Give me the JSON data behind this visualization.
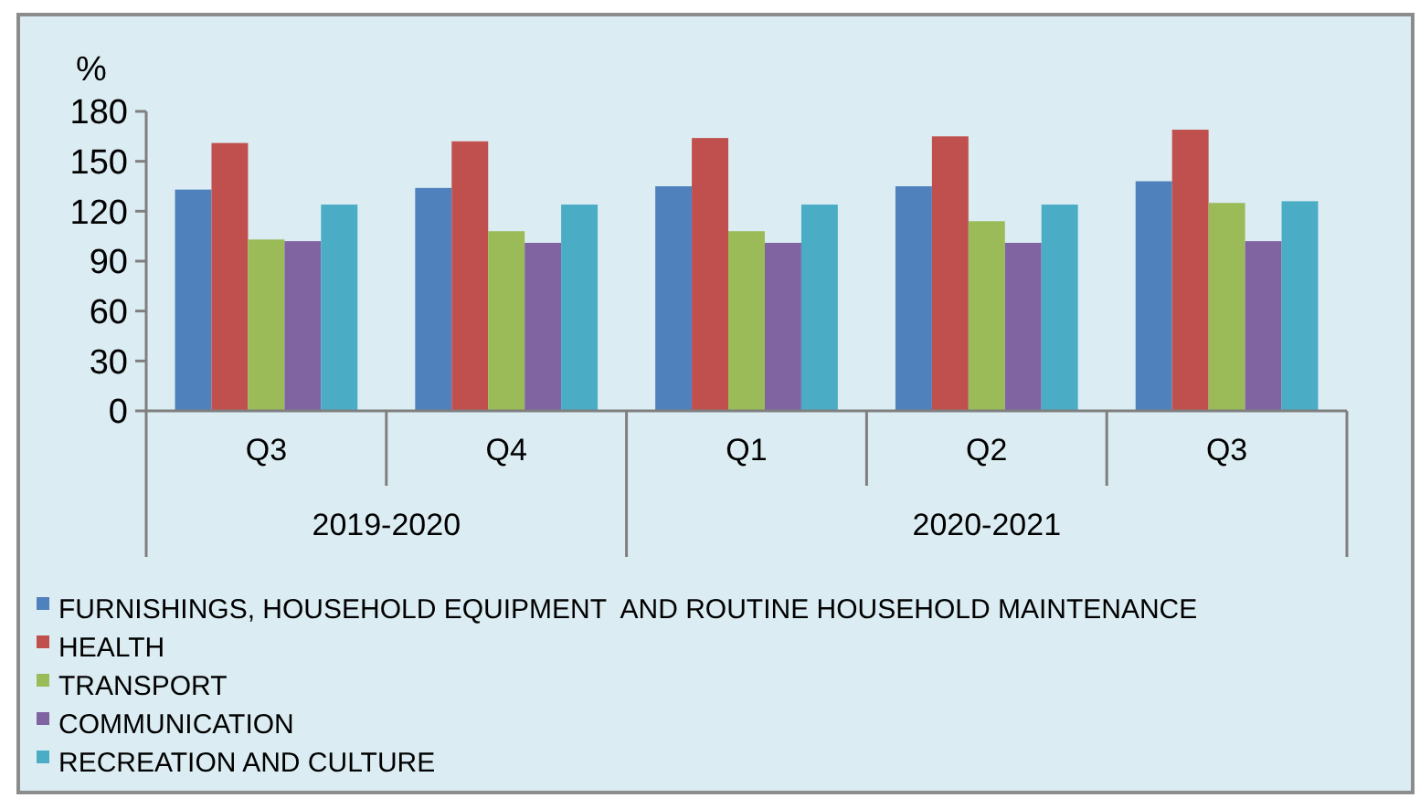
{
  "chart_data": {
    "type": "bar",
    "ylabel": "%",
    "categories": [
      "Q3",
      "Q4",
      "Q1",
      "Q2",
      "Q3"
    ],
    "series": [
      {
        "name": "FURNISHINGS, HOUSEHOLD EQUIPMENT  AND ROUTINE HOUSEHOLD MAINTENANCE",
        "color": "#4f81bd",
        "values": [
          133,
          134,
          135,
          135,
          138
        ]
      },
      {
        "name": "HEALTH",
        "color": "#c0504d",
        "values": [
          161,
          162,
          164,
          165,
          169
        ]
      },
      {
        "name": "TRANSPORT",
        "color": "#9bbb59",
        "values": [
          103,
          108,
          108,
          114,
          125
        ]
      },
      {
        "name": "COMMUNICATION",
        "color": "#8064a2",
        "values": [
          102,
          101,
          101,
          101,
          102
        ]
      },
      {
        "name": "RECREATION AND CULTURE",
        "color": "#4bacc6",
        "values": [
          124,
          124,
          124,
          124,
          126
        ]
      }
    ],
    "annotations": [
      "2019-2020",
      "2020-2021"
    ],
    "ylim": [
      0,
      180
    ],
    "yticks": [
      0,
      30,
      60,
      90,
      120,
      150,
      180
    ],
    "legend": "bottom"
  }
}
